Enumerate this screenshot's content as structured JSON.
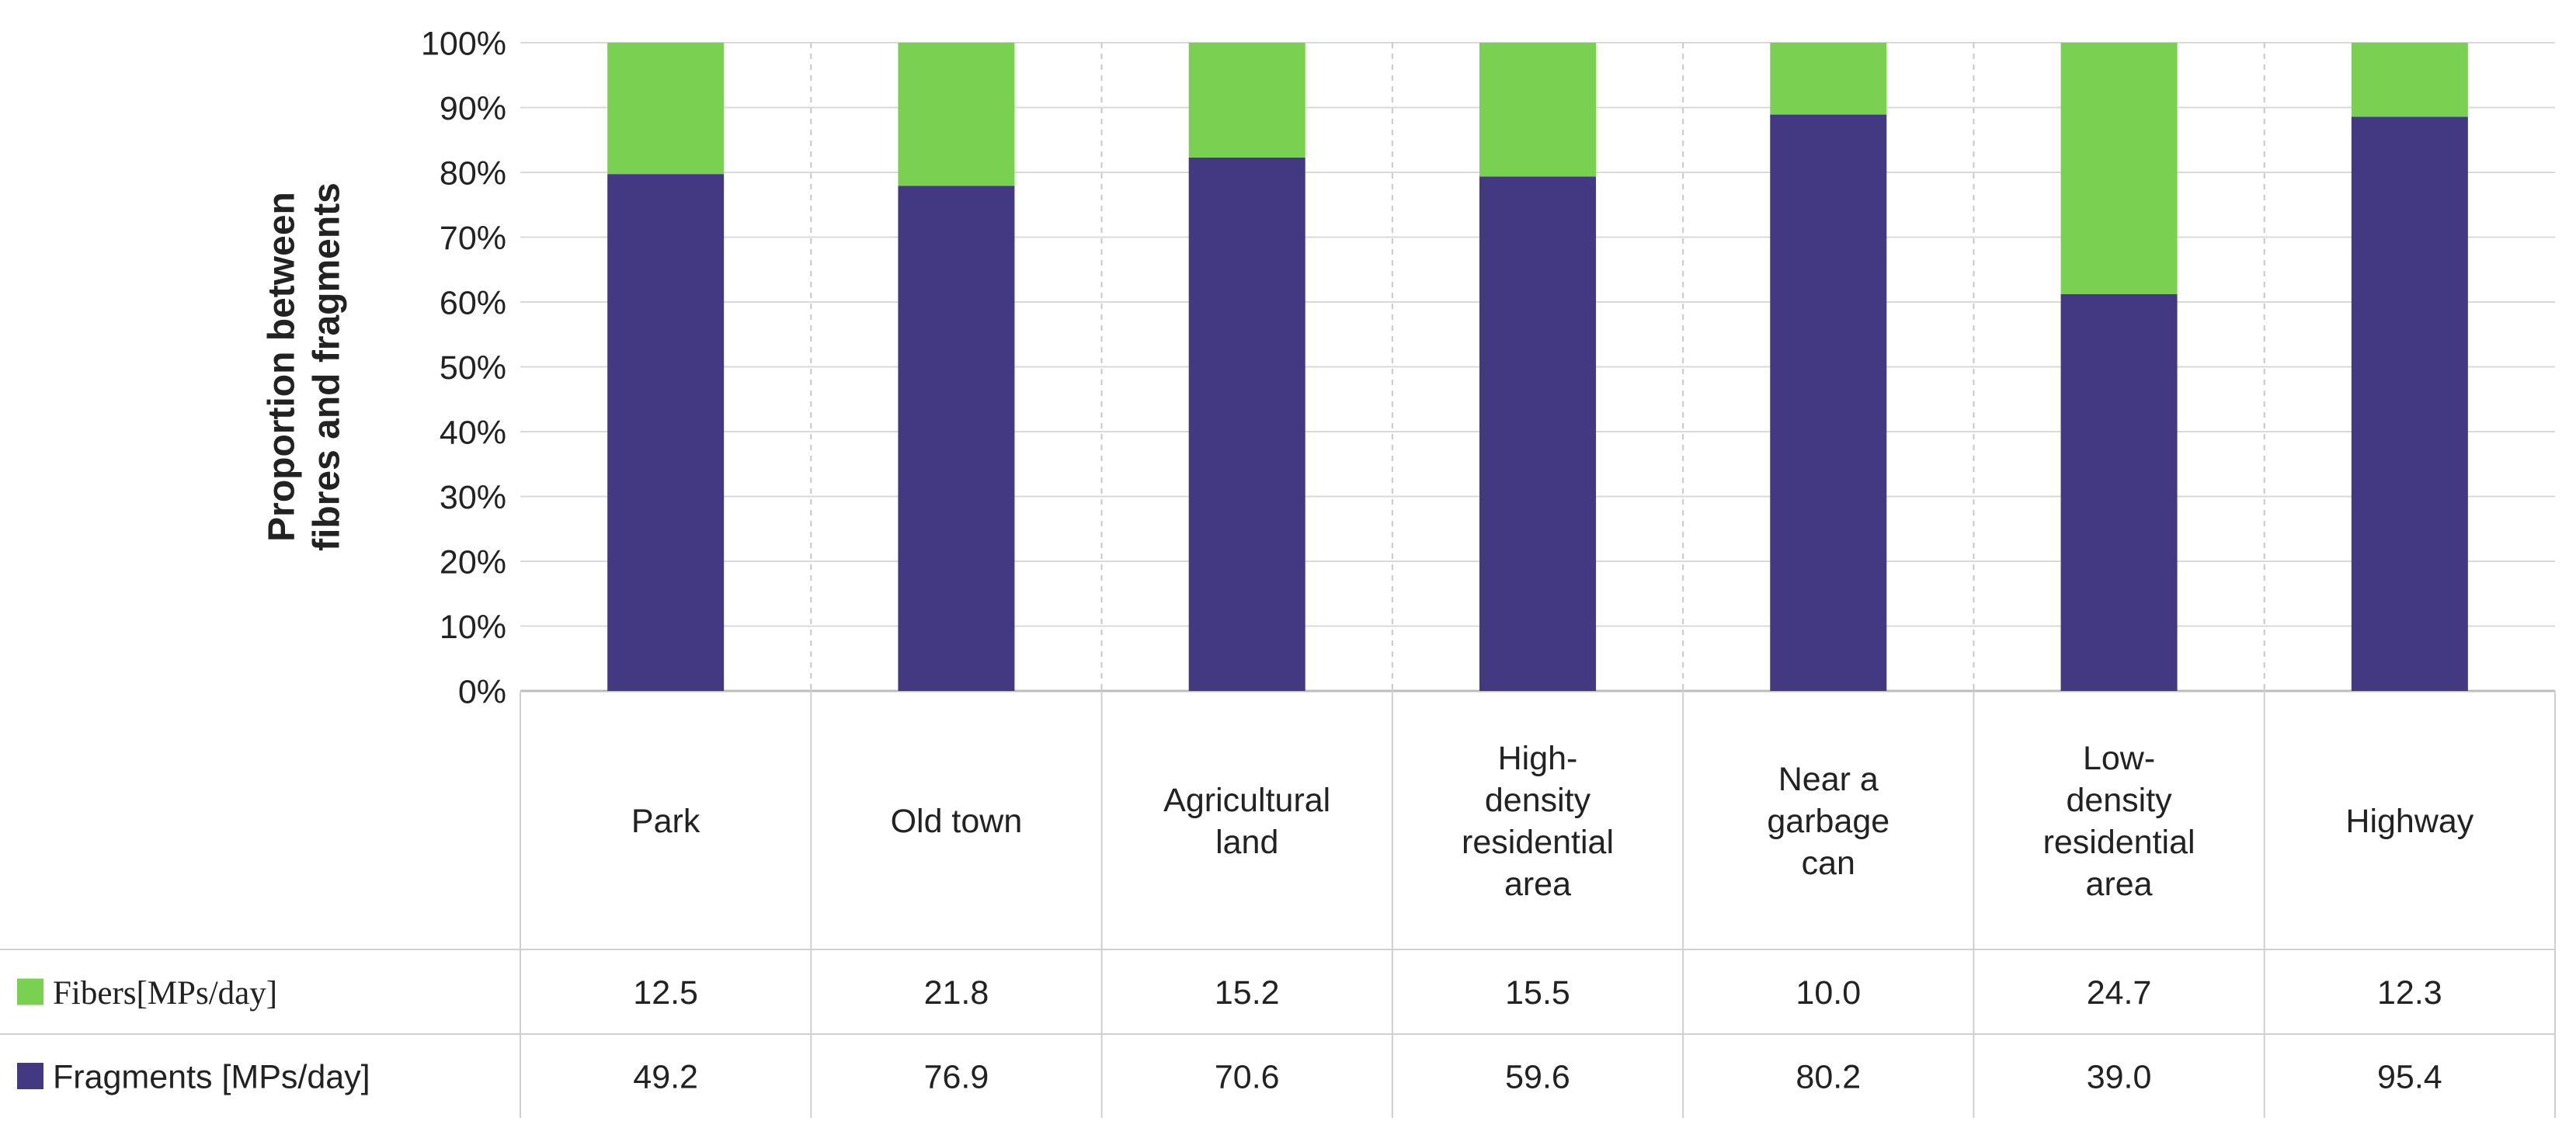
{
  "chart_data": {
    "type": "bar",
    "stacked": true,
    "normalized": true,
    "title": "",
    "xlabel": "",
    "ylabel": "Proportion between fibres and fragments",
    "ylabel_lines": [
      "Proportion between",
      "fibres and fragments"
    ],
    "ylim": [
      0,
      100
    ],
    "yticks": [
      "0%",
      "10%",
      "20%",
      "30%",
      "40%",
      "50%",
      "60%",
      "70%",
      "80%",
      "90%",
      "100%"
    ],
    "categories": [
      "Park",
      "Old town",
      "Agricultural land",
      "High-density residential area",
      "Near a garbage can",
      "Low-density residential area",
      "Highway"
    ],
    "category_lines": [
      [
        "Park"
      ],
      [
        "Old town"
      ],
      [
        "Agricultural",
        "land"
      ],
      [
        "High-",
        "density",
        "residential",
        "area"
      ],
      [
        "Near a",
        "garbage",
        "can"
      ],
      [
        "Low-",
        "density",
        "residential",
        "area"
      ],
      [
        "Highway"
      ]
    ],
    "series": [
      {
        "name": "Fibers [MPs/day]",
        "legend_label": "Fibers[MPs/day]",
        "color": "#7ad151",
        "values": [
          12.5,
          21.8,
          15.2,
          15.5,
          10.0,
          24.7,
          12.3
        ],
        "value_labels": [
          "12.5",
          "21.8",
          "15.2",
          "15.5",
          "10.0",
          "24.7",
          "12.3"
        ]
      },
      {
        "name": "Fragments [MPs/day]",
        "legend_label": "Fragments [MPs/day]",
        "color": "#433982",
        "values": [
          49.2,
          76.9,
          70.6,
          59.6,
          80.2,
          39.0,
          95.4
        ],
        "value_labels": [
          "49.2",
          "76.9",
          "70.6",
          "59.6",
          "80.2",
          "39.0",
          "95.4"
        ]
      }
    ],
    "legend_position": "data-table-left",
    "grid": true
  }
}
